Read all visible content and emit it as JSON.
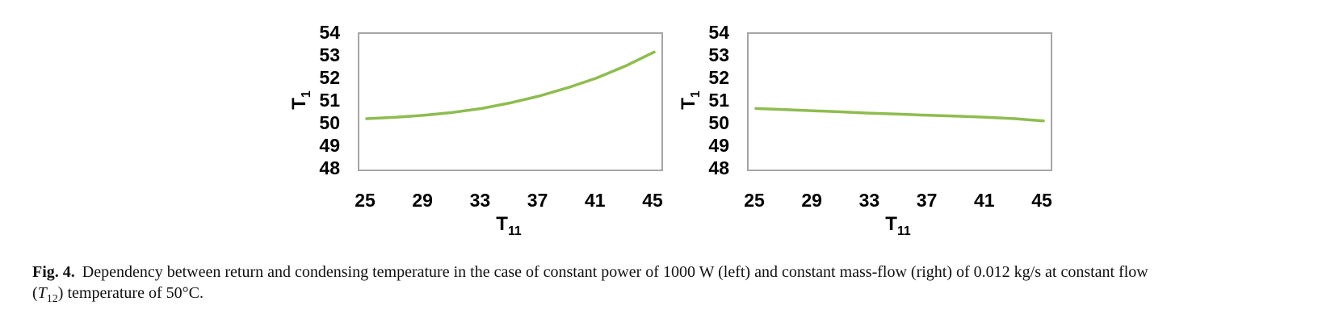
{
  "page": {
    "background": "#ffffff",
    "text_color": "#000000",
    "frame_color": "#a6a6a6"
  },
  "caption": {
    "label": "Fig. 4.",
    "line1": "Dependency between return and condensing temperature in the case of constant power of 1000 W (left) and constant mass-flow (right) of 0.012 kg/s at constant flow",
    "line2": {
      "pre": "(",
      "symbol": "T",
      "subscript": "12",
      "post": ") temperature of 50°C."
    }
  },
  "chart_data": [
    {
      "type": "line",
      "panel": "left",
      "description": "constant power of 1000 W",
      "y_label": {
        "base": "T",
        "sub": "1"
      },
      "x_label": {
        "base": "T",
        "sub": "11"
      },
      "y_ticks": [
        54,
        53,
        52,
        51,
        50,
        49,
        48
      ],
      "x_ticks": [
        25,
        29,
        33,
        37,
        41,
        45
      ],
      "ylim": [
        48,
        54
      ],
      "xlim": [
        25,
        45
      ],
      "grid": false,
      "legend": "none",
      "line_color": "#8fbc4f",
      "series": [
        {
          "name": "T1 vs T11 (constant power 1000 W)",
          "x": [
            25,
            27,
            29,
            31,
            33,
            35,
            37,
            39,
            41,
            43,
            45
          ],
          "y": [
            50.25,
            50.31,
            50.4,
            50.53,
            50.7,
            50.95,
            51.25,
            51.62,
            52.05,
            52.58,
            53.2
          ]
        }
      ]
    },
    {
      "type": "line",
      "panel": "right",
      "description": "constant mass-flow of 0.012 kg/s",
      "y_label": {
        "base": "T",
        "sub": "1"
      },
      "x_label": {
        "base": "T",
        "sub": "11"
      },
      "y_ticks": [
        54,
        53,
        52,
        51,
        50,
        49,
        48
      ],
      "x_ticks": [
        25,
        29,
        33,
        37,
        41,
        45
      ],
      "ylim": [
        48,
        54
      ],
      "xlim": [
        25,
        45
      ],
      "grid": false,
      "legend": "none",
      "line_color": "#8fbc4f",
      "series": [
        {
          "name": "T1 vs T11 (constant mass-flow 0.012 kg/s)",
          "x": [
            25,
            27,
            29,
            31,
            33,
            35,
            37,
            39,
            41,
            43,
            45
          ],
          "y": [
            50.7,
            50.65,
            50.6,
            50.55,
            50.49,
            50.45,
            50.4,
            50.36,
            50.31,
            50.25,
            50.15
          ]
        }
      ]
    }
  ]
}
